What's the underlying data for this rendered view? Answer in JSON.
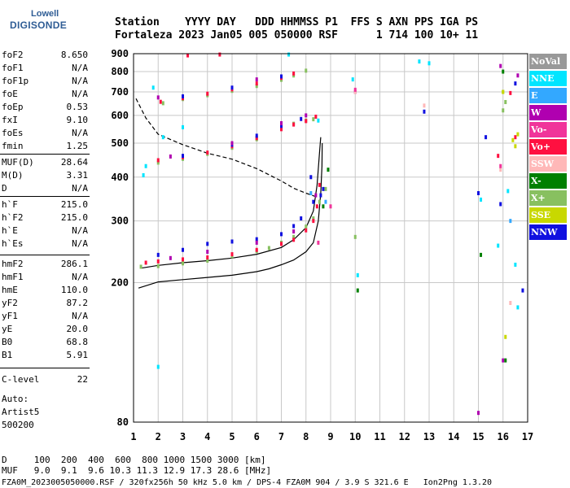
{
  "logo": {
    "top": "Lowell",
    "bottom": "DIGISONDE"
  },
  "header": {
    "line1": "Station    YYYY DAY   DDD HHMMSS P1  FFS S AXN PPS IGA PS",
    "line2": "Fortaleza 2023 Jan05 005 050000 RSF      1 714 100 10+ 11"
  },
  "params": [
    {
      "k": "foF2",
      "v": "8.650"
    },
    {
      "k": "foF1",
      "v": "N/A"
    },
    {
      "k": "foF1p",
      "v": "N/A"
    },
    {
      "k": "foE",
      "v": "N/A"
    },
    {
      "k": "foEp",
      "v": "0.53"
    },
    {
      "k": "fxI",
      "v": "9.10"
    },
    {
      "k": "foEs",
      "v": "N/A"
    },
    {
      "k": "fmin",
      "v": "1.25"
    },
    {
      "k": "MUF(D)",
      "v": "28.64"
    },
    {
      "k": "M(D)",
      "v": "3.31"
    },
    {
      "k": "D",
      "v": "N/A"
    },
    {
      "k": "h`F",
      "v": "215.0"
    },
    {
      "k": "h`F2",
      "v": "215.0"
    },
    {
      "k": "h`E",
      "v": "N/A"
    },
    {
      "k": "h`Es",
      "v": "N/A"
    },
    {
      "k": "hmF2",
      "v": "286.1"
    },
    {
      "k": "hmF1",
      "v": "N/A"
    },
    {
      "k": "hmE",
      "v": "110.0"
    },
    {
      "k": "yF2",
      "v": "87.2"
    },
    {
      "k": "yF1",
      "v": "N/A"
    },
    {
      "k": "yE",
      "v": "20.0"
    },
    {
      "k": "B0",
      "v": "68.8"
    },
    {
      "k": "B1",
      "v": "5.91"
    },
    {
      "k": "C-level",
      "v": "22"
    }
  ],
  "auto": {
    "line1": "Auto:",
    "line2": "Artist5",
    "line3": "500200"
  },
  "legend": [
    {
      "label": "NoVal",
      "bg": "#999999",
      "fg": "#ffffff"
    },
    {
      "label": "NNE",
      "bg": "#00e5ff",
      "fg": "#ffffff"
    },
    {
      "label": "E",
      "bg": "#33a8ff",
      "fg": "#ffffff"
    },
    {
      "label": "W",
      "bg": "#b000b0",
      "fg": "#ffffff"
    },
    {
      "label": "Vo-",
      "bg": "#f0349a",
      "fg": "#ffffff"
    },
    {
      "label": "Vo+",
      "bg": "#ff1040",
      "fg": "#ffffff"
    },
    {
      "label": "SSW",
      "bg": "#ffb8b8",
      "fg": "#ffffff"
    },
    {
      "label": "X-",
      "bg": "#008000",
      "fg": "#ffffff"
    },
    {
      "label": "X+",
      "bg": "#88c060",
      "fg": "#ffffff"
    },
    {
      "label": "SSE",
      "bg": "#c8d800",
      "fg": "#ffffff"
    },
    {
      "label": "NNW",
      "bg": "#1010e0",
      "fg": "#ffffff"
    }
  ],
  "bottom": {
    "line1": "D     100  200  400  600  800 1000 1500 3000 [km]",
    "line2": "MUF   9.0  9.1  9.6 10.3 11.3 12.9 17.3 28.6 [MHz]",
    "line3": "FZA0M_2023005050000.RSF / 320fx256h 50 kHz 5.0 km / DPS-4 FZA0M 904 / 3.9 S 321.6 E   Ion2Png 1.3.20"
  },
  "chart_data": {
    "type": "scatter",
    "title": "",
    "xlabel": "",
    "ylabel": "",
    "xlim": [
      1,
      17
    ],
    "ylim": [
      80,
      900
    ],
    "y_scale": "log",
    "x_ticks": [
      1,
      2,
      3,
      4,
      5,
      6,
      7,
      8,
      9,
      10,
      11,
      12,
      13,
      14,
      15,
      16,
      17
    ],
    "y_ticks": [
      80,
      200,
      300,
      400,
      500,
      600,
      700,
      800,
      900
    ],
    "grid": true,
    "series": [
      {
        "name": "X+",
        "color": "#88c060",
        "points": [
          [
            1.3,
            222
          ],
          [
            2,
            223
          ],
          [
            3,
            227
          ],
          [
            4,
            231
          ],
          [
            5,
            238
          ],
          [
            6,
            246
          ],
          [
            6.5,
            251
          ],
          [
            7,
            260
          ],
          [
            7.5,
            270
          ],
          [
            8,
            289
          ],
          [
            8.3,
            305
          ],
          [
            8.55,
            340
          ],
          [
            8.8,
            370
          ],
          [
            2,
            440
          ],
          [
            3,
            451
          ],
          [
            4,
            466
          ],
          [
            5,
            485
          ],
          [
            6,
            513
          ],
          [
            7,
            549
          ],
          [
            7.5,
            568
          ],
          [
            8,
            580
          ],
          [
            8.3,
            585
          ],
          [
            2.2,
            650
          ],
          [
            3,
            668
          ],
          [
            4,
            685
          ],
          [
            5,
            705
          ],
          [
            6,
            728
          ],
          [
            7,
            758
          ],
          [
            7.5,
            780
          ],
          [
            8,
            805
          ],
          [
            10,
            270
          ],
          [
            16,
            700
          ],
          [
            16.1,
            655
          ],
          [
            16,
            620
          ]
        ]
      },
      {
        "name": "Vo+",
        "color": "#ff1040",
        "points": [
          [
            1.5,
            228
          ],
          [
            2,
            230
          ],
          [
            3,
            233
          ],
          [
            4,
            236
          ],
          [
            5,
            241
          ],
          [
            6,
            248
          ],
          [
            7,
            258
          ],
          [
            7.5,
            265
          ],
          [
            8,
            282
          ],
          [
            8.3,
            300
          ],
          [
            8.45,
            330
          ],
          [
            8.55,
            380
          ],
          [
            2,
            447
          ],
          [
            3,
            456
          ],
          [
            4,
            470
          ],
          [
            5,
            490
          ],
          [
            6,
            517
          ],
          [
            7,
            548
          ],
          [
            7.5,
            565
          ],
          [
            8,
            578
          ],
          [
            8.4,
            595
          ],
          [
            2.1,
            656
          ],
          [
            3,
            672
          ],
          [
            4,
            692
          ],
          [
            5,
            712
          ],
          [
            6,
            740
          ],
          [
            7,
            768
          ],
          [
            7.5,
            790
          ],
          [
            3.2,
            890
          ],
          [
            4.5,
            895
          ],
          [
            15.8,
            460
          ],
          [
            16.5,
            520
          ],
          [
            16.3,
            695
          ]
        ]
      },
      {
        "name": "NNW",
        "color": "#1010e0",
        "points": [
          [
            2,
            240
          ],
          [
            3,
            248
          ],
          [
            4,
            258
          ],
          [
            5,
            262
          ],
          [
            6,
            266
          ],
          [
            7,
            275
          ],
          [
            7.5,
            290
          ],
          [
            7.8,
            305
          ],
          [
            8.3,
            340
          ],
          [
            8.6,
            355
          ],
          [
            8.2,
            400
          ],
          [
            8.7,
            370
          ],
          [
            3,
            460
          ],
          [
            5,
            495
          ],
          [
            6,
            525
          ],
          [
            7,
            560
          ],
          [
            7.8,
            586
          ],
          [
            3,
            680
          ],
          [
            5,
            720
          ],
          [
            7,
            775
          ],
          [
            15,
            360
          ],
          [
            15.3,
            520
          ],
          [
            16.5,
            740
          ],
          [
            15.9,
            335
          ],
          [
            12.8,
            615
          ],
          [
            16.8,
            190
          ]
        ]
      },
      {
        "name": "W",
        "color": "#b000b0",
        "points": [
          [
            2.5,
            235
          ],
          [
            4,
            245
          ],
          [
            6,
            260
          ],
          [
            7.5,
            280
          ],
          [
            8.4,
            355
          ],
          [
            2.5,
            458
          ],
          [
            5,
            500
          ],
          [
            7,
            570
          ],
          [
            8,
            600
          ],
          [
            2,
            675
          ],
          [
            6,
            760
          ],
          [
            10,
            700
          ],
          [
            16.6,
            780
          ],
          [
            15,
            85
          ],
          [
            16,
            120
          ],
          [
            15.9,
            830
          ]
        ]
      },
      {
        "name": "NNE",
        "color": "#00e5ff",
        "points": [
          [
            1.5,
            430
          ],
          [
            2.2,
            520
          ],
          [
            3,
            555
          ],
          [
            1.4,
            405
          ],
          [
            1.8,
            720
          ],
          [
            10.1,
            210
          ],
          [
            12.6,
            855
          ],
          [
            15.8,
            255
          ],
          [
            16.5,
            225
          ],
          [
            16.6,
            170
          ],
          [
            15.1,
            345
          ],
          [
            13,
            845
          ],
          [
            16.2,
            365
          ],
          [
            2,
            115
          ],
          [
            8.5,
            580
          ],
          [
            9.9,
            760
          ],
          [
            7.3,
            895
          ]
        ]
      },
      {
        "name": "SSE",
        "color": "#c8d800",
        "points": [
          [
            16.5,
            490
          ],
          [
            16.6,
            530
          ],
          [
            16.1,
            140
          ],
          [
            16,
            700
          ],
          [
            16.4,
            510
          ]
        ]
      },
      {
        "name": "X-",
        "color": "#008000",
        "points": [
          [
            8.7,
            330
          ],
          [
            8.9,
            420
          ],
          [
            16.1,
            120
          ],
          [
            10.1,
            190
          ],
          [
            15.1,
            240
          ],
          [
            16,
            800
          ]
        ]
      },
      {
        "name": "SSW",
        "color": "#ffb8b8",
        "points": [
          [
            15.9,
            420
          ],
          [
            16.3,
            175
          ],
          [
            10,
            700
          ],
          [
            12.8,
            640
          ]
        ]
      },
      {
        "name": "Vo-",
        "color": "#f0349a",
        "points": [
          [
            8.5,
            260
          ],
          [
            9,
            330
          ],
          [
            15.9,
            430
          ],
          [
            10,
            710
          ]
        ]
      },
      {
        "name": "E",
        "color": "#33a8ff",
        "points": [
          [
            8.2,
            360
          ],
          [
            8.8,
            340
          ],
          [
            16.3,
            300
          ]
        ]
      }
    ],
    "lines": [
      {
        "name": "profile",
        "style": "solid",
        "color": "#000000",
        "points": [
          [
            1.2,
            193
          ],
          [
            2,
            201
          ],
          [
            3,
            204
          ],
          [
            4,
            207
          ],
          [
            5,
            210
          ],
          [
            6,
            215
          ],
          [
            6.5,
            219
          ],
          [
            7,
            225
          ],
          [
            7.5,
            232
          ],
          [
            8,
            245
          ],
          [
            8.3,
            260
          ],
          [
            8.5,
            300
          ],
          [
            8.6,
            360
          ],
          [
            8.65,
            430
          ],
          [
            8.66,
            500
          ]
        ]
      },
      {
        "name": "MUF",
        "style": "dashed",
        "color": "#000000",
        "points": [
          [
            1.1,
            670
          ],
          [
            1.5,
            590
          ],
          [
            2,
            530
          ],
          [
            3,
            495
          ],
          [
            4,
            468
          ],
          [
            5,
            450
          ],
          [
            6,
            423
          ],
          [
            7,
            390
          ],
          [
            7.5,
            372
          ],
          [
            8,
            360
          ],
          [
            8.5,
            350
          ]
        ]
      },
      {
        "name": "virtual",
        "style": "solid",
        "color": "#000000",
        "points": [
          [
            1.3,
            220
          ],
          [
            2,
            224
          ],
          [
            3,
            228
          ],
          [
            4,
            231
          ],
          [
            5,
            235
          ],
          [
            6,
            241
          ],
          [
            7,
            252
          ],
          [
            7.5,
            265
          ],
          [
            8,
            287
          ],
          [
            8.3,
            320
          ],
          [
            8.45,
            380
          ],
          [
            8.55,
            470
          ],
          [
            8.6,
            520
          ]
        ]
      }
    ]
  }
}
